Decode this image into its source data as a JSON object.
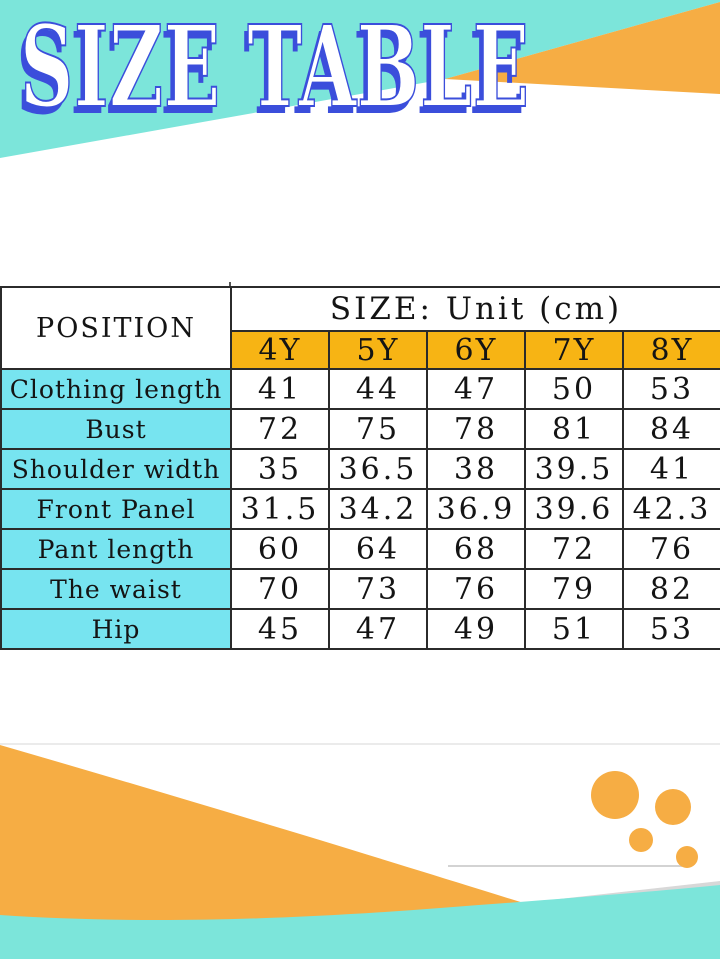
{
  "title": "SIZE TABLE",
  "table": {
    "position_label": "POSITION",
    "size_unit_label": "SIZE: Unit (cm)"
  },
  "chart_data": {
    "type": "table",
    "title": "SIZE TABLE",
    "unit": "cm",
    "categories": [
      "4Y",
      "5Y",
      "6Y",
      "7Y",
      "8Y"
    ],
    "series": [
      {
        "name": "Clothing length",
        "values": [
          41,
          44,
          47,
          50,
          53
        ]
      },
      {
        "name": "Bust",
        "values": [
          72,
          75,
          78,
          81,
          84
        ]
      },
      {
        "name": "Shoulder width",
        "values": [
          35,
          36.5,
          38,
          39.5,
          41
        ]
      },
      {
        "name": "Front Panel",
        "values": [
          31.5,
          34.2,
          36.9,
          39.6,
          42.3
        ]
      },
      {
        "name": "Pant length",
        "values": [
          60,
          64,
          68,
          72,
          76
        ]
      },
      {
        "name": "The waist",
        "values": [
          70,
          73,
          76,
          79,
          82
        ]
      },
      {
        "name": "Hip",
        "values": [
          45,
          47,
          49,
          51,
          53
        ]
      }
    ]
  },
  "colors": {
    "teal": "#7CE5DA",
    "cyan": "#77E4F0",
    "yellow": "#F7B414",
    "orange": "#F6AD44",
    "title_blue": "#3B4EDB",
    "border": "#2B2B2B",
    "line_light": "#EBEBEB",
    "line_gray": "#D3D3D3",
    "sliver_gray": "#D8D8D8"
  }
}
